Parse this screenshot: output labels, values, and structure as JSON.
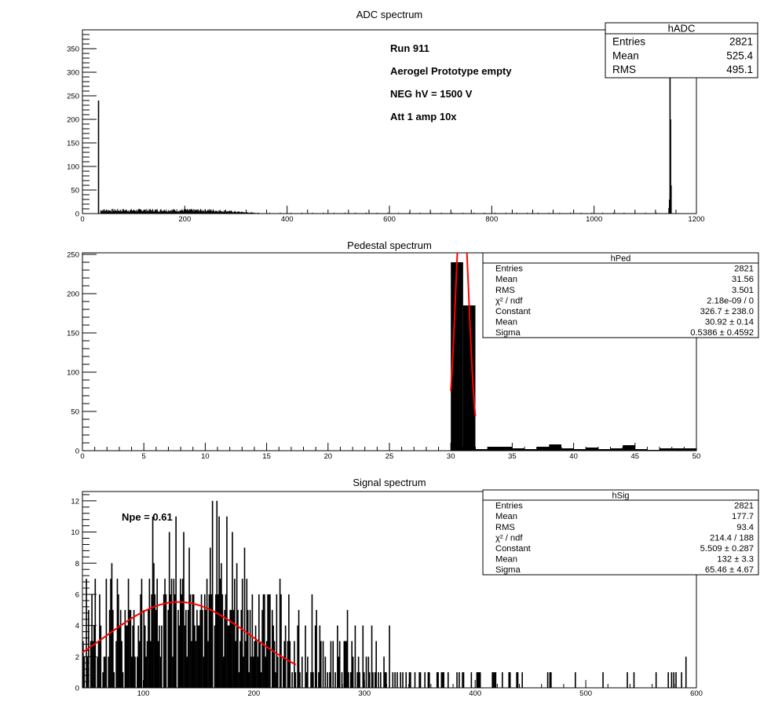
{
  "chart_data": [
    {
      "type": "bar",
      "title": "ADC spectrum",
      "xlim": [
        0,
        1200
      ],
      "ylim": [
        0,
        390
      ],
      "xticks": [
        0,
        200,
        400,
        600,
        800,
        1000,
        1200
      ],
      "yticks": [
        0,
        50,
        100,
        150,
        200,
        250,
        300,
        350
      ],
      "peaks": [
        {
          "x": 31,
          "y": 240
        },
        {
          "x": 1148,
          "y": 300
        },
        {
          "x": 1149,
          "y": 200
        },
        {
          "x": 1150,
          "y": 60
        },
        {
          "x": 1147,
          "y": 30
        },
        {
          "x": 1146,
          "y": 12
        }
      ],
      "noise_level": {
        "x_range": [
          35,
          360
        ],
        "peak_height": 10
      },
      "annotations": [
        "Run  911",
        "Aerogel Prototype empty",
        "NEG hV = 1500 V",
        "Att 1 amp 10x"
      ],
      "stats": {
        "name": "hADC",
        "rows": [
          {
            "label": "Entries",
            "value": "2821"
          },
          {
            "label": "Mean",
            "value": "525.4"
          },
          {
            "label": "RMS",
            "value": "495.1"
          }
        ]
      }
    },
    {
      "type": "bar",
      "title": "Pedestal spectrum",
      "xlim": [
        0,
        50
      ],
      "ylim": [
        0,
        252
      ],
      "xticks": [
        0,
        5,
        10,
        15,
        20,
        25,
        30,
        35,
        40,
        45,
        50
      ],
      "yticks": [
        0,
        50,
        100,
        150,
        200,
        250
      ],
      "bins": [
        {
          "x0": 30,
          "x1": 31,
          "y": 240
        },
        {
          "x0": 31,
          "x1": 32,
          "y": 185
        },
        {
          "x0": 32,
          "x1": 33,
          "y": 2
        },
        {
          "x0": 33,
          "x1": 35,
          "y": 5
        },
        {
          "x0": 35,
          "x1": 36,
          "y": 3
        },
        {
          "x0": 36,
          "x1": 37,
          "y": 2
        },
        {
          "x0": 37,
          "x1": 38,
          "y": 5
        },
        {
          "x0": 38,
          "x1": 39,
          "y": 8
        },
        {
          "x0": 39,
          "x1": 40,
          "y": 3
        },
        {
          "x0": 40,
          "x1": 41,
          "y": 2
        },
        {
          "x0": 41,
          "x1": 42,
          "y": 4
        },
        {
          "x0": 42,
          "x1": 43,
          "y": 2
        },
        {
          "x0": 43,
          "x1": 44,
          "y": 3
        },
        {
          "x0": 44,
          "x1": 45,
          "y": 7
        },
        {
          "x0": 45,
          "x1": 46,
          "y": 2
        },
        {
          "x0": 46,
          "x1": 47,
          "y": 1
        },
        {
          "x0": 47,
          "x1": 48,
          "y": 3
        },
        {
          "x0": 48,
          "x1": 49,
          "y": 3
        },
        {
          "x0": 49,
          "x1": 50,
          "y": 3
        }
      ],
      "fit": {
        "constant": 326.7,
        "mean": 30.92,
        "sigma": 0.5386,
        "x_range": [
          30.0,
          32.0
        ]
      },
      "stats": {
        "name": "hPed",
        "rows": [
          {
            "label": "Entries",
            "value": "2821"
          },
          {
            "label": "Mean",
            "value": "31.56"
          },
          {
            "label": "RMS",
            "value": "3.501"
          },
          {
            "label": "χ² / ndf",
            "value": "2.18e-09 / 0"
          },
          {
            "label": "Constant",
            "value": "326.7 ± 238.0"
          },
          {
            "label": "Mean",
            "value": "30.92 ± 0.14"
          },
          {
            "label": "Sigma",
            "value": "0.5386 ± 0.4592"
          }
        ]
      }
    },
    {
      "type": "bar",
      "title": "Signal spectrum",
      "xlim": [
        45,
        600
      ],
      "ylim": [
        0,
        12.6
      ],
      "xticks": [
        100,
        200,
        300,
        400,
        500,
        600
      ],
      "yticks": [
        0,
        2,
        4,
        6,
        8,
        10,
        12
      ],
      "bin_width": 1,
      "counts": [
        3,
        2,
        0,
        7,
        2,
        5,
        0,
        3,
        6,
        3,
        4,
        7,
        0,
        2,
        3,
        6,
        4,
        0,
        1,
        2,
        2,
        7,
        0,
        2,
        5,
        7,
        8,
        5,
        1,
        0,
        3,
        7,
        6,
        4,
        5,
        3,
        1,
        0,
        5,
        4,
        4,
        7,
        5,
        5,
        2,
        4,
        5,
        2,
        0,
        2,
        4,
        3,
        6,
        7,
        0,
        5,
        4,
        2,
        3,
        5,
        7,
        3,
        6,
        11,
        8,
        6,
        5,
        7,
        3,
        4,
        2,
        4,
        0,
        6,
        7,
        6,
        0,
        5,
        10,
        6,
        7,
        2,
        7,
        6,
        11,
        0,
        5,
        4,
        7,
        6,
        7,
        10,
        4,
        5,
        2,
        5,
        9,
        6,
        3,
        6,
        6,
        4,
        3,
        5,
        4,
        4,
        5,
        6,
        5,
        2,
        6,
        5,
        7,
        3,
        6,
        9,
        6,
        12,
        0,
        4,
        6,
        12,
        6,
        11,
        7,
        8,
        6,
        2,
        5,
        6,
        11,
        4,
        4,
        5,
        5,
        10,
        5,
        7,
        3,
        8,
        5,
        1,
        3,
        5,
        7,
        2,
        9,
        3,
        7,
        5,
        1,
        5,
        2,
        6,
        2,
        3,
        4,
        3,
        2,
        6,
        3,
        1,
        5,
        6,
        6,
        2,
        3,
        6,
        6,
        6,
        0,
        5,
        4,
        3,
        1,
        6,
        2,
        0,
        7,
        6,
        0,
        2,
        3,
        4,
        0,
        3,
        6,
        3,
        0,
        1,
        0,
        3,
        1,
        0,
        4,
        5,
        1,
        0,
        2,
        0,
        0,
        4,
        1,
        2,
        0,
        0,
        1,
        6,
        1,
        0,
        4,
        5,
        0,
        1,
        4,
        3,
        0,
        3,
        0,
        2,
        0,
        1,
        0,
        1,
        3,
        0,
        3,
        0,
        1,
        0,
        4,
        2,
        3,
        0,
        1,
        0,
        3,
        3,
        3,
        5,
        1,
        0,
        1,
        3,
        2,
        0,
        4,
        0,
        1,
        2,
        1,
        0,
        0,
        4,
        1,
        0,
        2,
        0,
        2,
        1,
        0,
        4,
        1,
        0,
        1,
        3,
        0,
        1,
        0,
        1,
        0,
        0,
        2,
        1,
        1,
        0,
        0,
        4,
        0,
        0,
        1,
        0,
        1,
        0,
        1,
        0,
        0,
        1,
        0,
        1,
        0,
        0,
        1,
        0,
        0,
        1,
        1,
        0,
        0,
        0,
        1,
        0,
        0,
        0,
        1,
        1,
        0,
        0,
        0,
        1,
        0,
        0,
        1,
        1,
        0,
        0,
        0,
        0,
        0,
        0,
        1,
        1,
        0,
        0,
        1,
        1,
        1,
        0,
        0,
        0,
        1,
        0,
        0,
        0,
        0,
        0,
        0,
        0,
        1,
        0,
        1,
        0,
        0,
        1,
        1,
        0,
        0,
        0,
        0,
        0,
        0,
        1,
        0,
        0,
        0,
        0,
        1,
        1,
        1,
        1,
        0,
        0,
        0,
        0,
        0,
        0,
        0,
        0,
        0,
        0,
        1,
        1,
        1,
        1,
        0,
        0,
        0,
        0,
        0,
        1,
        0,
        0,
        0,
        0,
        0,
        1,
        1,
        0,
        0,
        0,
        0,
        0,
        1,
        1,
        0,
        0,
        0,
        1,
        0,
        0,
        0,
        0,
        0,
        0,
        0,
        0,
        0,
        0,
        0,
        0,
        0,
        0,
        0,
        0,
        0,
        0,
        0,
        0,
        0,
        0,
        1,
        0,
        1,
        1,
        0,
        0,
        0,
        0,
        0,
        0,
        0,
        0,
        0,
        0,
        0,
        0,
        0,
        0,
        0,
        0,
        0,
        0,
        0,
        0,
        0,
        1,
        0,
        0,
        0,
        0,
        0,
        0,
        0,
        0,
        0,
        0,
        0,
        0,
        0,
        0,
        0,
        0,
        0,
        0,
        0,
        0,
        0,
        0,
        0,
        0,
        1,
        0,
        0,
        0,
        0,
        0,
        0,
        0,
        0,
        0,
        0,
        0,
        0,
        0,
        0,
        0,
        0,
        0,
        0,
        0,
        0,
        0,
        1,
        0,
        0,
        0,
        0,
        0,
        1,
        0,
        0,
        0,
        0,
        0,
        0,
        0,
        0,
        0,
        0,
        0,
        0,
        0,
        0,
        0,
        0,
        0,
        0,
        0,
        1,
        0,
        0,
        0,
        0,
        0,
        0,
        0,
        0,
        0,
        0,
        1,
        0,
        0,
        1,
        0,
        1,
        0,
        1,
        0,
        0,
        0,
        0,
        1,
        0,
        0,
        0,
        2
      ],
      "fit": {
        "constant": 5.509,
        "mean": 132,
        "sigma": 65.46,
        "x_range": [
          45,
          238
        ]
      },
      "annotations": [
        "Npe = 0.61"
      ],
      "stats": {
        "name": "hSig",
        "rows": [
          {
            "label": "Entries",
            "value": "2821"
          },
          {
            "label": "Mean",
            "value": "177.7"
          },
          {
            "label": "RMS",
            "value": "93.4"
          },
          {
            "label": "χ² / ndf",
            "value": "214.4 / 188"
          },
          {
            "label": "Constant",
            "value": "5.509 ± 0.287"
          },
          {
            "label": "Mean",
            "value": "132 ± 3.3"
          },
          {
            "label": "Sigma",
            "value": "65.46 ± 4.67"
          }
        ]
      }
    }
  ],
  "colors": {
    "axis": "#000000",
    "bars": "#000000",
    "fit": "#ff0000",
    "background": "#ffffff"
  }
}
